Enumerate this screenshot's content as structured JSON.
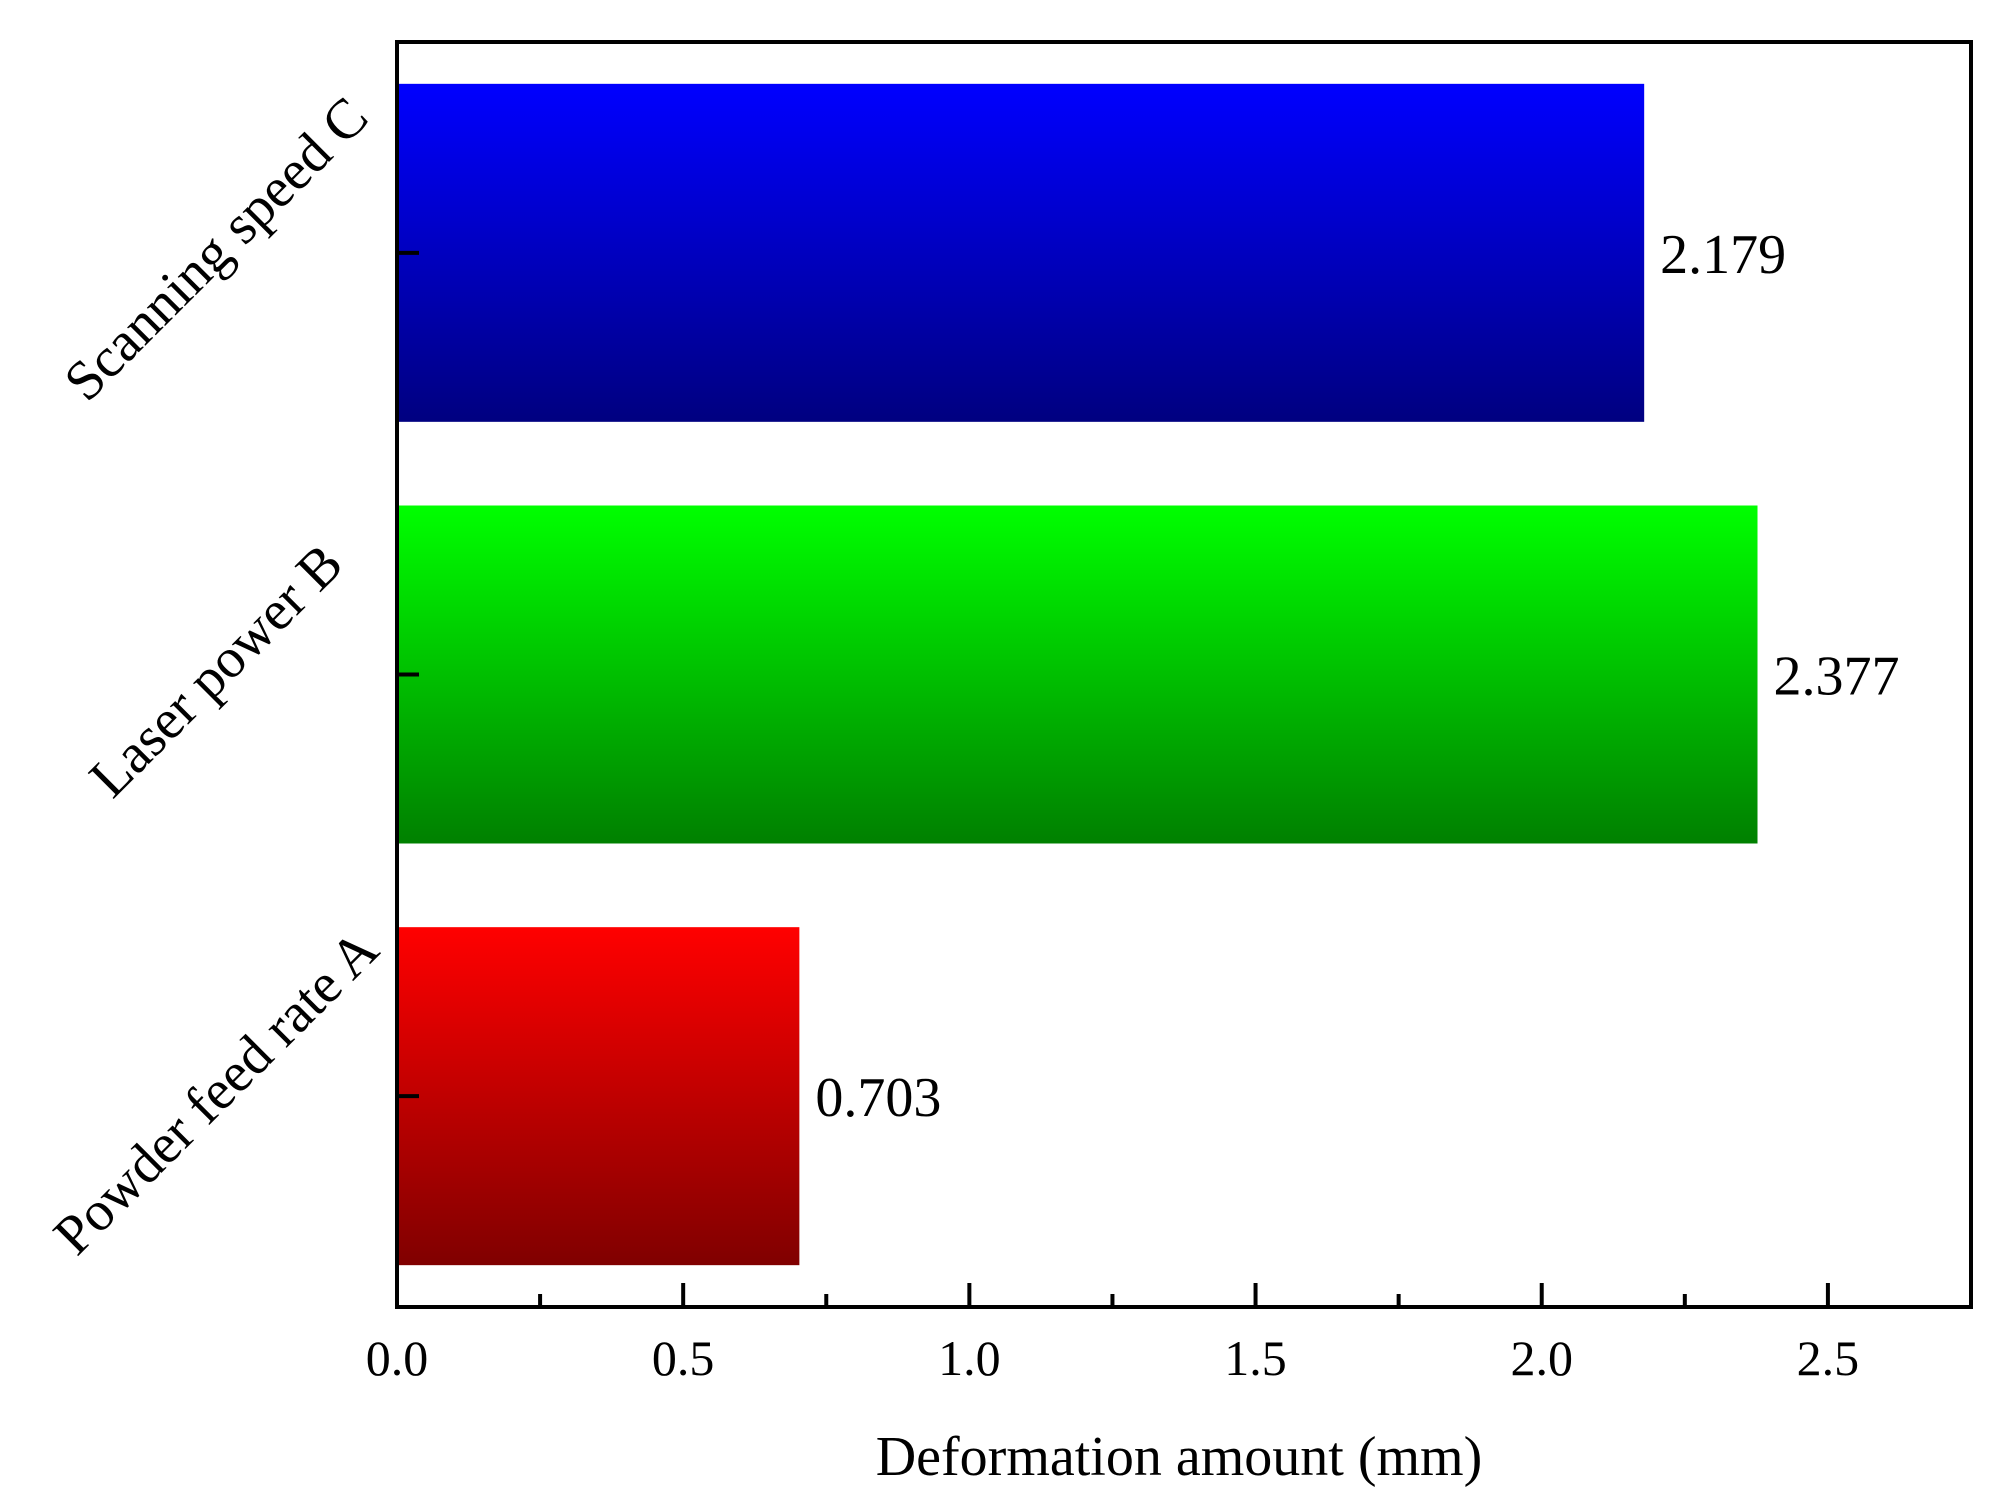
{
  "chart_data": {
    "type": "bar",
    "orientation": "horizontal",
    "categories": [
      "Powder feed rate A",
      "Laser power B",
      "Scanning speed C"
    ],
    "values": [
      0.703,
      2.377,
      2.179
    ],
    "data_labels": [
      "0.703",
      "2.377",
      "2.179"
    ],
    "colors": [
      {
        "top": "#ff0000",
        "bottom": "#800000"
      },
      {
        "top": "#00ff00",
        "bottom": "#008000"
      },
      {
        "top": "#0000ff",
        "bottom": "#000080"
      }
    ],
    "xlabel": "Deformation amount (mm)",
    "ylabel": "",
    "xlim": [
      0,
      2.75
    ],
    "x_ticks": [
      0.0,
      0.5,
      1.0,
      1.5,
      2.0,
      2.5
    ],
    "x_tick_labels": [
      "0.0",
      "0.5",
      "1.0",
      "1.5",
      "2.0",
      "2.5"
    ],
    "x_minor_ticks": [
      0.25,
      0.75,
      1.25,
      1.75,
      2.25,
      2.75
    ],
    "grid": false,
    "legend": "none"
  }
}
